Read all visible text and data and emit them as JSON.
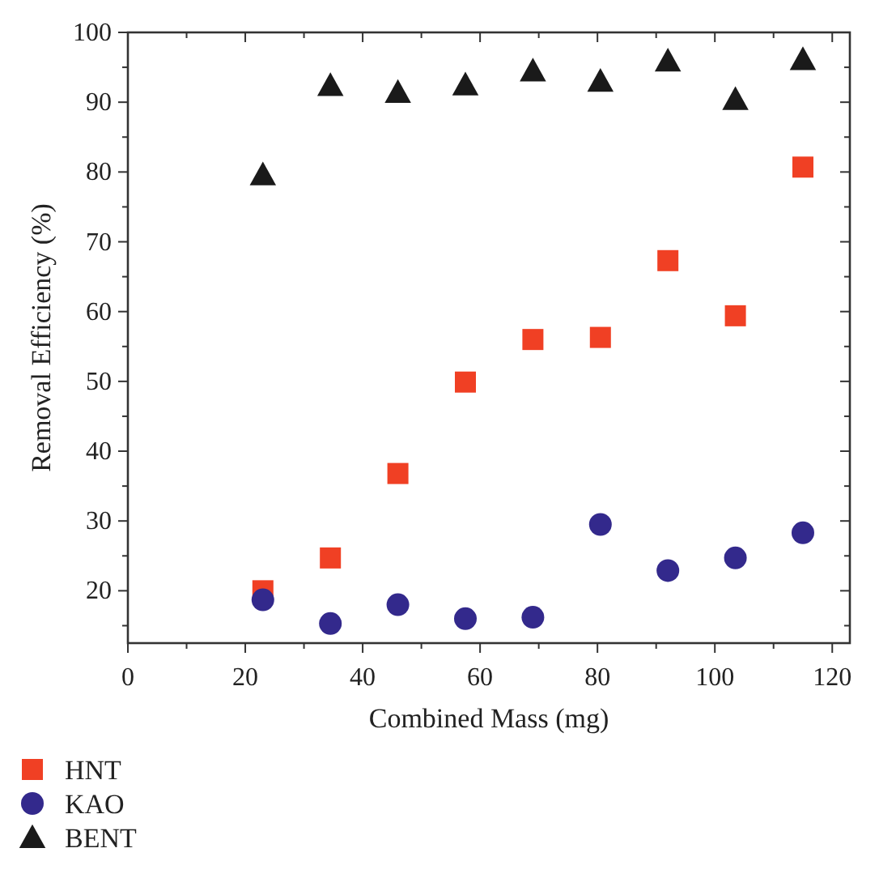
{
  "chart_data": {
    "type": "scatter",
    "xlabel": "Combined Mass (mg)",
    "ylabel": "Removal Efficiency (%)",
    "x": [
      23,
      34.5,
      46,
      57.5,
      69,
      80.5,
      92,
      103.5,
      115
    ],
    "xlim": [
      0,
      123
    ],
    "xticks": [
      0,
      20,
      40,
      60,
      80,
      100,
      120
    ],
    "ylim": [
      12.5,
      100
    ],
    "yticks": [
      20,
      30,
      40,
      50,
      60,
      70,
      80,
      90,
      100
    ],
    "grid": false,
    "legend": "bottom left",
    "series": [
      {
        "name": "HNT",
        "color": "#f04024",
        "marker": "square",
        "values": [
          20,
          24.7,
          36.8,
          49.9,
          56,
          56.3,
          67.3,
          59.4,
          80.7
        ]
      },
      {
        "name": "KAO",
        "color": "#33298c",
        "marker": "circle",
        "values": [
          18.7,
          15.3,
          18,
          16,
          16.2,
          29.5,
          22.9,
          24.7,
          28.3
        ]
      },
      {
        "name": "BENT",
        "color": "#1a1a1a",
        "marker": "triangle",
        "values": [
          79.6,
          92.4,
          91.4,
          92.5,
          94.5,
          93,
          95.9,
          90.4,
          96.1
        ]
      }
    ]
  }
}
